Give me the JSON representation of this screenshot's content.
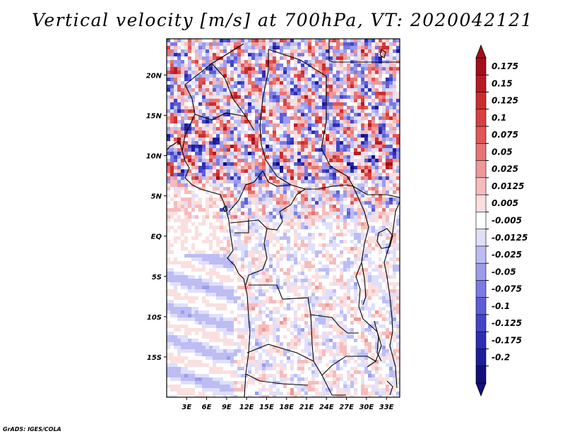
{
  "chart_data": {
    "type": "heatmap",
    "title": "Vertical velocity [m/s] at 700hPa, VT: 2020042121",
    "variable": "Vertical velocity",
    "units": "m/s",
    "level": "700hPa",
    "valid_time": "2020042121",
    "lon_range": [
      0,
      35
    ],
    "lat_range": [
      -20,
      24.5
    ],
    "x_ticks": [
      {
        "value": 3,
        "label": "3E"
      },
      {
        "value": 6,
        "label": "6E"
      },
      {
        "value": 9,
        "label": "9E"
      },
      {
        "value": 12,
        "label": "12E"
      },
      {
        "value": 15,
        "label": "15E"
      },
      {
        "value": 18,
        "label": "18E"
      },
      {
        "value": 21,
        "label": "21E"
      },
      {
        "value": 24,
        "label": "24E"
      },
      {
        "value": 27,
        "label": "27E"
      },
      {
        "value": 30,
        "label": "30E"
      },
      {
        "value": 33,
        "label": "33E"
      }
    ],
    "y_ticks": [
      {
        "value": 20,
        "label": "20N"
      },
      {
        "value": 15,
        "label": "15N"
      },
      {
        "value": 10,
        "label": "10N"
      },
      {
        "value": 5,
        "label": "5N"
      },
      {
        "value": 0,
        "label": "EQ"
      },
      {
        "value": -5,
        "label": "5S"
      },
      {
        "value": -10,
        "label": "10S"
      },
      {
        "value": -15,
        "label": "15S"
      }
    ],
    "colorbar": {
      "labels": [
        "0.175",
        "0.15",
        "0.125",
        "0.1",
        "0.075",
        "0.05",
        "0.025",
        "0.0125",
        "0.005",
        "-0.005",
        "-0.0125",
        "-0.025",
        "-0.05",
        "-0.075",
        "-0.1",
        "-0.125",
        "-0.175",
        "-0.2"
      ],
      "colors": [
        "#a50d1d",
        "#b81a24",
        "#cb2d2d",
        "#d94040",
        "#e15656",
        "#e87474",
        "#ef9898",
        "#f6bcbc",
        "#fbdfdf",
        "#ffffff",
        "#dfdffb",
        "#bdbdf4",
        "#9c9cec",
        "#7b7be3",
        "#5d5dd8",
        "#4343c8",
        "#2d2db4",
        "#1d1d9a",
        "#12107a"
      ]
    }
  },
  "credit": "GrADS: IGES/COLA"
}
